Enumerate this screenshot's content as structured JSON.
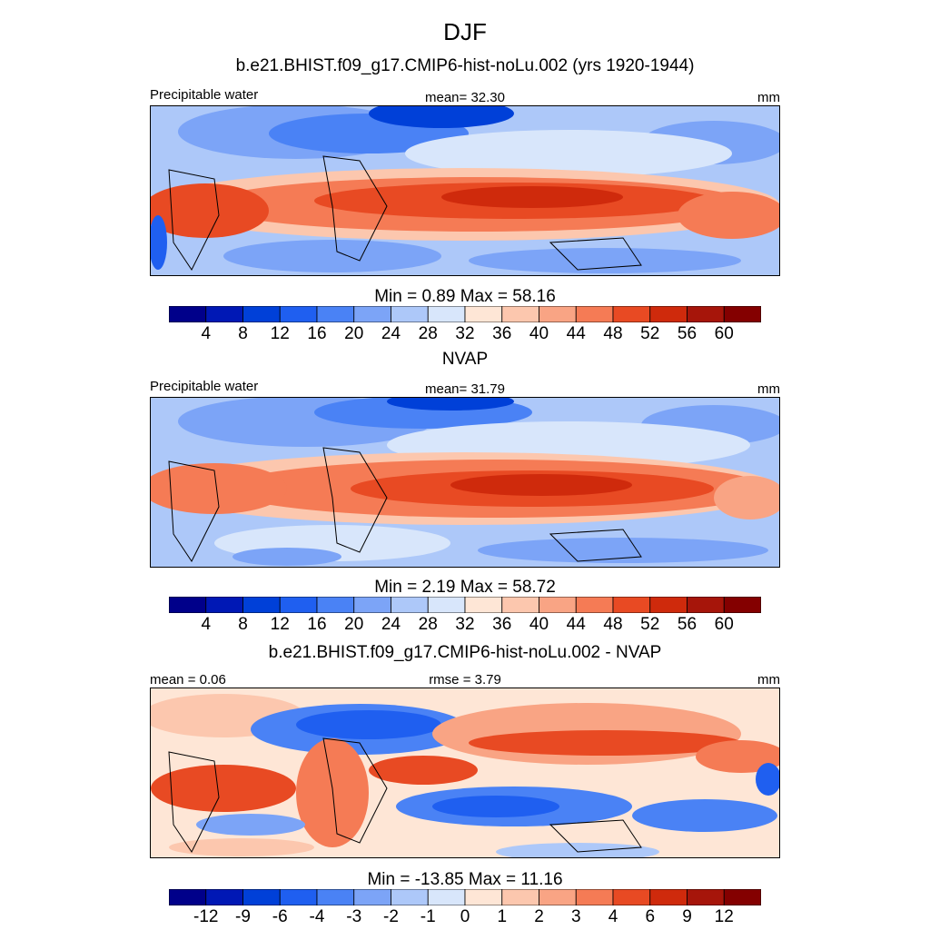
{
  "figure": {
    "title": "DJF"
  },
  "chart_data": [
    {
      "type": "heatmap",
      "title": "b.e21.BHIST.f09_g17.CMIP6-hist-noLu.002 (yrs 1920-1944)",
      "left_label": "Precipitable water",
      "center_label": "mean=  32.30",
      "right_label": "mm",
      "minmax_label": "Min =   0.89 Max =  58.16",
      "min": 0.89,
      "max": 58.16,
      "mean": 32.3,
      "units": "mm",
      "colorbar_ticks": [
        "4",
        "8",
        "12",
        "16",
        "20",
        "24",
        "28",
        "32",
        "36",
        "40",
        "44",
        "48",
        "52",
        "56",
        "60"
      ],
      "colors": [
        "#00008a",
        "#0018b5",
        "#0040d8",
        "#1f5ff0",
        "#4a82f5",
        "#7ca4f7",
        "#adc8f9",
        "#d8e6fb",
        "#fee6d6",
        "#fcc7ae",
        "#f9a484",
        "#f57b55",
        "#e84a23",
        "#cf2a0c",
        "#a6150a",
        "#840000"
      ]
    },
    {
      "type": "heatmap",
      "title": "NVAP",
      "left_label": "Precipitable water",
      "center_label": "mean=  31.79",
      "right_label": "mm",
      "minmax_label": "Min =   2.19 Max =  58.72",
      "min": 2.19,
      "max": 58.72,
      "mean": 31.79,
      "units": "mm",
      "colorbar_ticks": [
        "4",
        "8",
        "12",
        "16",
        "20",
        "24",
        "28",
        "32",
        "36",
        "40",
        "44",
        "48",
        "52",
        "56",
        "60"
      ],
      "colors": [
        "#00008a",
        "#0018b5",
        "#0040d8",
        "#1f5ff0",
        "#4a82f5",
        "#7ca4f7",
        "#adc8f9",
        "#d8e6fb",
        "#fee6d6",
        "#fcc7ae",
        "#f9a484",
        "#f57b55",
        "#e84a23",
        "#cf2a0c",
        "#a6150a",
        "#840000"
      ]
    },
    {
      "type": "heatmap",
      "title": "b.e21.BHIST.f09_g17.CMIP6-hist-noLu.002 - NVAP",
      "left_label": "mean =   0.06",
      "center_label": "rmse =   3.79",
      "right_label": "mm",
      "minmax_label": "Min = -13.85 Max =  11.16",
      "min": -13.85,
      "max": 11.16,
      "mean": 0.06,
      "rmse": 3.79,
      "units": "mm",
      "colorbar_ticks": [
        "-12",
        "-9",
        "-6",
        "-4",
        "-3",
        "-2",
        "-1",
        "0",
        "1",
        "2",
        "3",
        "4",
        "6",
        "9",
        "12"
      ],
      "colors": [
        "#00008a",
        "#0018b5",
        "#0040d8",
        "#1f5ff0",
        "#4a82f5",
        "#7ca4f7",
        "#adc8f9",
        "#d8e6fb",
        "#fee6d6",
        "#fcc7ae",
        "#f9a484",
        "#f57b55",
        "#e84a23",
        "#cf2a0c",
        "#a6150a",
        "#840000"
      ]
    }
  ]
}
